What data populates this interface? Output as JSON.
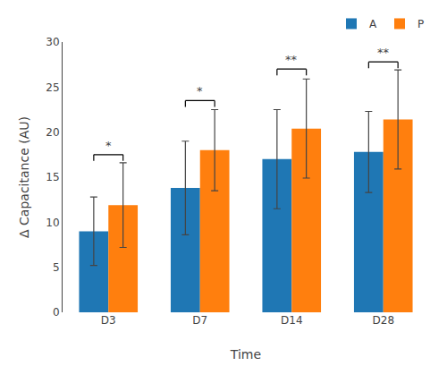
{
  "chart_data": {
    "type": "bar",
    "categories": [
      "D3",
      "D7",
      "D14",
      "D28"
    ],
    "series": [
      {
        "name": "A",
        "values": [
          9.0,
          13.8,
          17.0,
          17.8
        ],
        "errors": [
          3.8,
          5.2,
          5.5,
          4.5
        ]
      },
      {
        "name": "P",
        "values": [
          11.9,
          18.0,
          20.4,
          21.4
        ],
        "errors": [
          4.7,
          4.5,
          5.5,
          5.5
        ]
      }
    ],
    "xlabel": "Time",
    "ylabel": "Δ Capacitance (AU)",
    "ylim": [
      0,
      30
    ],
    "yticks": [
      0,
      5,
      10,
      15,
      20,
      25,
      30
    ],
    "grid": false,
    "legend": "upper right",
    "annotations": [
      {
        "text": "*",
        "x": "D3",
        "y": 17.5
      },
      {
        "text": "*",
        "x": "D7",
        "y": 23.5
      },
      {
        "text": "**",
        "x": "D14",
        "y": 27.0
      },
      {
        "text": "**",
        "x": "D28",
        "y": 27.8
      }
    ]
  }
}
